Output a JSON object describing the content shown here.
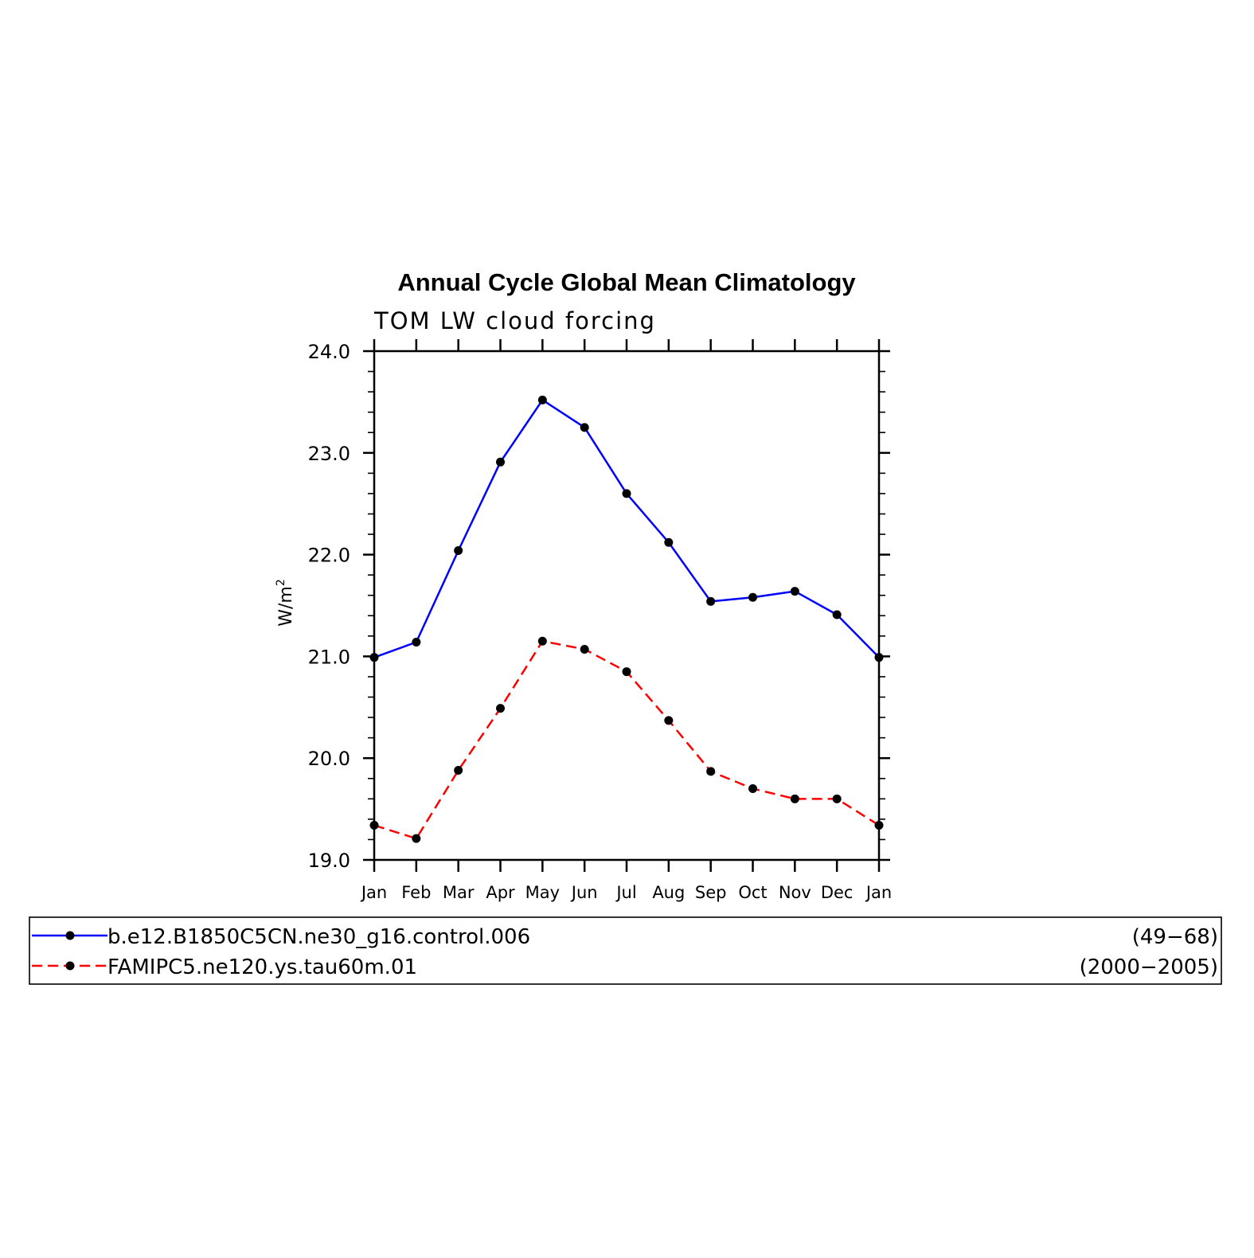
{
  "chart_data": {
    "type": "line",
    "title": "Annual Cycle Global Mean Climatology",
    "subtitle": "TOM LW cloud forcing",
    "ylabel": "W/m",
    "ylabel_superscript": "2",
    "xlabel": "",
    "categories": [
      "Jan",
      "Feb",
      "Mar",
      "Apr",
      "May",
      "Jun",
      "Jul",
      "Aug",
      "Sep",
      "Oct",
      "Nov",
      "Dec",
      "Jan"
    ],
    "ylim": [
      19.0,
      24.0
    ],
    "yticks": [
      "19.0",
      "20.0",
      "21.0",
      "22.0",
      "23.0",
      "24.0"
    ],
    "grid": false,
    "legend_position": "bottom",
    "series": [
      {
        "name": "b.e12.B1850C5CN.ne30_g16.control.006",
        "years": "(49−68)",
        "color": "#0000ff",
        "dashed": false,
        "values": [
          20.99,
          21.14,
          22.04,
          22.91,
          23.52,
          23.25,
          22.6,
          22.12,
          21.54,
          21.58,
          21.64,
          21.41,
          20.99
        ]
      },
      {
        "name": "FAMIPC5.ne120.ys.tau60m.01",
        "years": "(2000−2005)",
        "color": "#ff0000",
        "dashed": true,
        "values": [
          19.34,
          19.21,
          19.88,
          20.49,
          21.15,
          21.07,
          20.85,
          20.37,
          19.87,
          19.7,
          19.6,
          19.6,
          19.34
        ]
      }
    ],
    "marker_color": "#000000"
  }
}
